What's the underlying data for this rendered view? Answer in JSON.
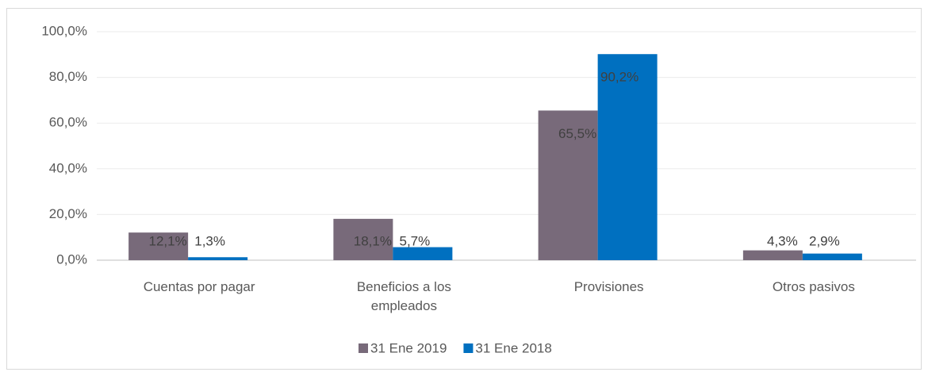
{
  "chart_data": {
    "type": "bar",
    "categories": [
      "Cuentas por pagar",
      "Beneficios a los empleados",
      "Provisiones",
      "Otros pasivos"
    ],
    "series": [
      {
        "name": "31 Ene 2019",
        "color": "#786a7a",
        "values": [
          12.1,
          18.1,
          65.5,
          4.3
        ],
        "value_labels": [
          "12,1%",
          "18,1%",
          "65,5%",
          "4,3%"
        ]
      },
      {
        "name": "31 Ene 2018",
        "color": "#0070c0",
        "values": [
          1.3,
          5.7,
          90.2,
          2.9
        ],
        "value_labels": [
          "1,3%",
          "5,7%",
          "90,2%",
          "2,9%"
        ]
      }
    ],
    "ylim": [
      0,
      100
    ],
    "yticks": [
      {
        "value": 0,
        "label": "0,0%"
      },
      {
        "value": 20,
        "label": "20,0%"
      },
      {
        "value": 40,
        "label": "40,0%"
      },
      {
        "value": 60,
        "label": "60,0%"
      },
      {
        "value": 80,
        "label": "80,0%"
      },
      {
        "value": 100,
        "label": "100,0%"
      }
    ],
    "grid": true,
    "legend": "bottom"
  }
}
